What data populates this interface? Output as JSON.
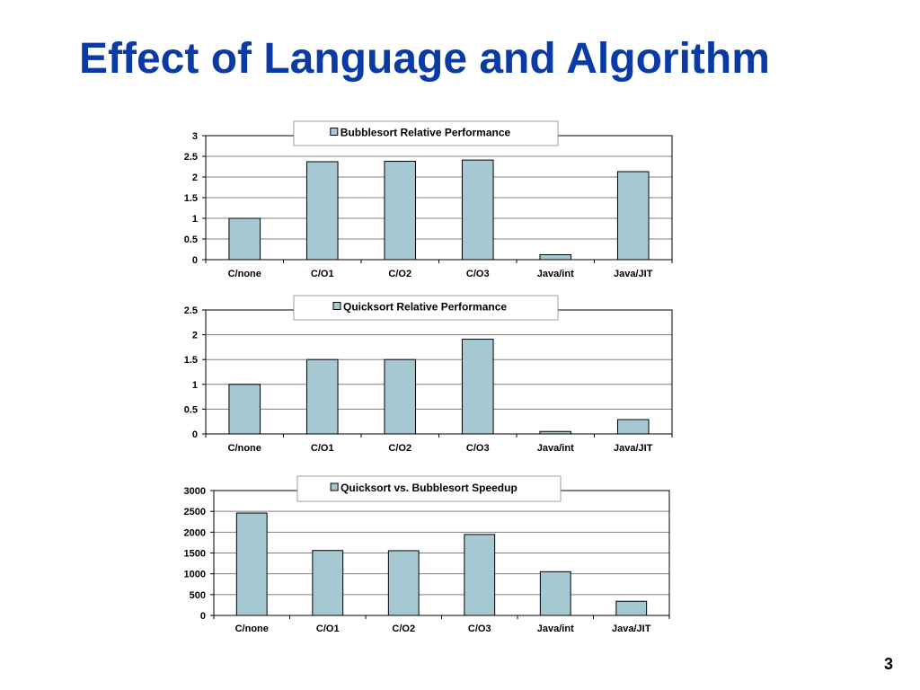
{
  "slide": {
    "title": "Effect of Language and Algorithm",
    "page_number": "3"
  },
  "colors": {
    "title": "#0a3ba5",
    "bar_fill": "#a5c8d3",
    "bar_stroke": "#000000",
    "grid": "#808080"
  },
  "chart_data": [
    {
      "type": "bar",
      "categories": [
        "C/none",
        "C/O1",
        "C/O2",
        "C/O3",
        "Java/int",
        "Java/JIT"
      ],
      "series": [
        {
          "name": "Bubblesort Relative Performance",
          "values": [
            1.0,
            2.37,
            2.38,
            2.41,
            0.12,
            2.13
          ]
        }
      ],
      "ylim": [
        0,
        3
      ],
      "yticks": [
        "0",
        "0.5",
        "1",
        "1.5",
        "2",
        "2.5",
        "3"
      ],
      "ytick_values": [
        0,
        0.5,
        1,
        1.5,
        2,
        2.5,
        3
      ],
      "grid": true,
      "legend_position": "top"
    },
    {
      "type": "bar",
      "categories": [
        "C/none",
        "C/O1",
        "C/O2",
        "C/O3",
        "Java/int",
        "Java/JIT"
      ],
      "series": [
        {
          "name": "Quicksort Relative Performance",
          "values": [
            1.0,
            1.5,
            1.5,
            1.91,
            0.05,
            0.29
          ]
        }
      ],
      "ylim": [
        0,
        2.5
      ],
      "yticks": [
        "0",
        "0.5",
        "1",
        "1.5",
        "2",
        "2.5"
      ],
      "ytick_values": [
        0,
        0.5,
        1,
        1.5,
        2,
        2.5
      ],
      "grid": true,
      "legend_position": "top"
    },
    {
      "type": "bar",
      "categories": [
        "C/none",
        "C/O1",
        "C/O2",
        "C/O3",
        "Java/int",
        "Java/JIT"
      ],
      "series": [
        {
          "name": "Quicksort vs. Bubblesort Speedup",
          "values": [
            2460,
            1560,
            1555,
            1945,
            1050,
            340
          ]
        }
      ],
      "ylim": [
        0,
        3000
      ],
      "yticks": [
        "0",
        "500",
        "1000",
        "1500",
        "2000",
        "2500",
        "3000"
      ],
      "ytick_values": [
        0,
        500,
        1000,
        1500,
        2000,
        2500,
        3000
      ],
      "grid": true,
      "legend_position": "top"
    }
  ]
}
